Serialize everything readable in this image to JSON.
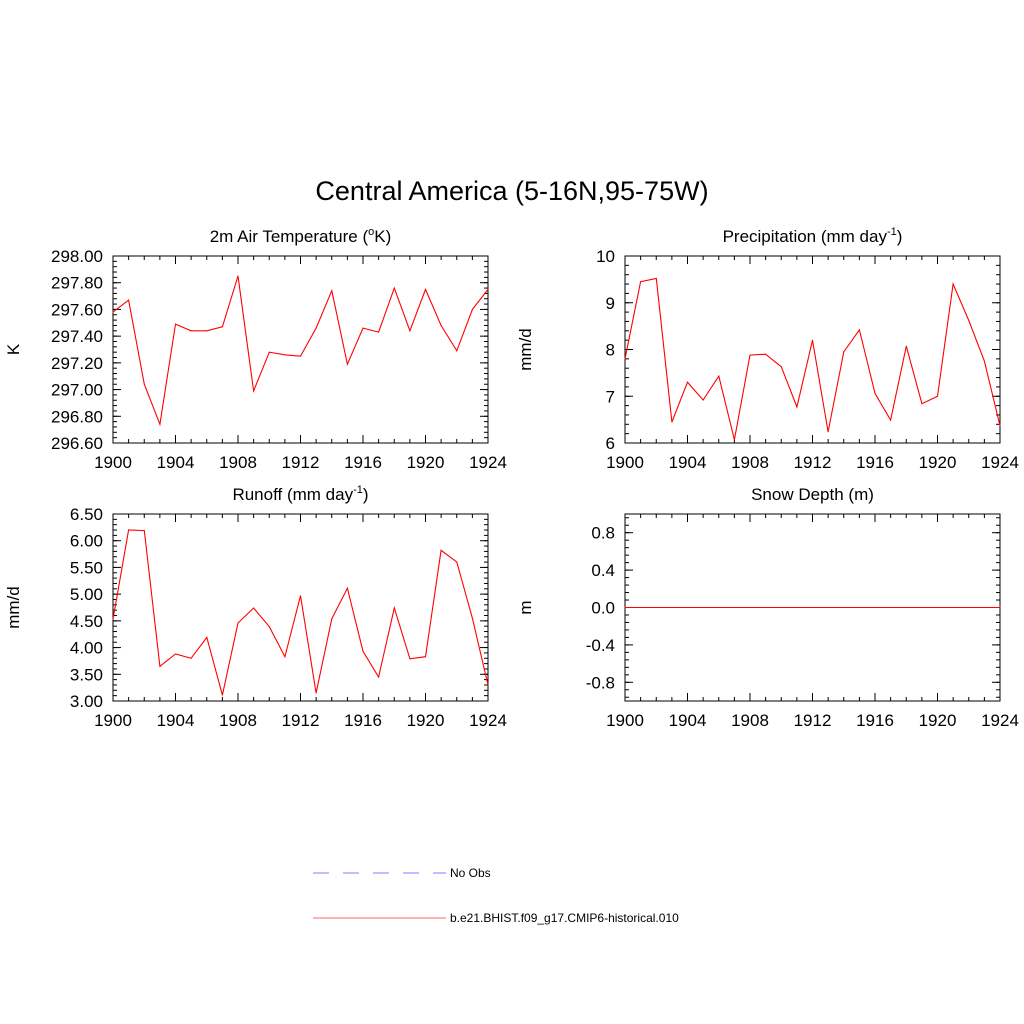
{
  "main_title": "Central America (5-16N,95-75W)",
  "colors": {
    "model_line": "#ff0000",
    "obs_line": "#9999ff",
    "axis": "#000000"
  },
  "legend": {
    "items": [
      {
        "label": "No Obs",
        "style": "dashed",
        "color": "#9999ff"
      },
      {
        "label": "b.e21.BHIST.f09_g17.CMIP6-historical.010",
        "style": "solid",
        "color": "#ff8080"
      }
    ]
  },
  "chart_data": [
    {
      "type": "line",
      "title": "2m Air Temperature (",
      "title_sup": "o",
      "title_after": "K)",
      "ylabel": "K",
      "xlim": [
        1900,
        1924
      ],
      "ylim": [
        296.6,
        298.0
      ],
      "xticks": [
        "1900",
        "1904",
        "1908",
        "1912",
        "1916",
        "1920",
        "1924"
      ],
      "yticks": [
        "296.60",
        "296.80",
        "297.00",
        "297.20",
        "297.40",
        "297.60",
        "297.80",
        "298.00"
      ],
      "x": [
        1900,
        1901,
        1902,
        1903,
        1904,
        1905,
        1906,
        1907,
        1908,
        1909,
        1910,
        1911,
        1912,
        1913,
        1914,
        1915,
        1916,
        1917,
        1918,
        1919,
        1920,
        1921,
        1922,
        1923,
        1924
      ],
      "series": [
        {
          "values": [
            297.58,
            297.67,
            297.04,
            296.74,
            297.49,
            297.44,
            297.44,
            297.47,
            297.85,
            296.99,
            297.28,
            297.26,
            297.25,
            297.46,
            297.74,
            297.19,
            297.46,
            297.43,
            297.76,
            297.44,
            297.75,
            297.48,
            297.29,
            297.6,
            297.75
          ]
        }
      ]
    },
    {
      "type": "line",
      "title": "Precipitation (mm day",
      "title_sup": "-1",
      "title_after": ")",
      "ylabel": "mm/d",
      "xlim": [
        1900,
        1924
      ],
      "ylim": [
        6,
        10
      ],
      "xticks": [
        "1900",
        "1904",
        "1908",
        "1912",
        "1916",
        "1920",
        "1924"
      ],
      "yticks": [
        "6",
        "7",
        "8",
        "9",
        "10"
      ],
      "x": [
        1900,
        1901,
        1902,
        1903,
        1904,
        1905,
        1906,
        1907,
        1908,
        1909,
        1910,
        1911,
        1912,
        1913,
        1914,
        1915,
        1916,
        1917,
        1918,
        1919,
        1920,
        1921,
        1922,
        1923,
        1924
      ],
      "series": [
        {
          "values": [
            7.8,
            9.45,
            9.52,
            6.45,
            7.3,
            6.92,
            7.43,
            6.07,
            7.88,
            7.9,
            7.63,
            6.77,
            8.2,
            6.24,
            7.95,
            8.42,
            7.06,
            6.49,
            8.07,
            6.84,
            7.0,
            9.4,
            8.62,
            7.75,
            6.37
          ]
        }
      ]
    },
    {
      "type": "line",
      "title": "Runoff (mm day",
      "title_sup": "-1",
      "title_after": ")",
      "ylabel": "mm/d",
      "xlim": [
        1900,
        1924
      ],
      "ylim": [
        3.0,
        6.5
      ],
      "xticks": [
        "1900",
        "1904",
        "1908",
        "1912",
        "1916",
        "1920",
        "1924"
      ],
      "yticks": [
        "3.00",
        "3.50",
        "4.00",
        "4.50",
        "5.00",
        "5.50",
        "6.00",
        "6.50"
      ],
      "x": [
        1900,
        1901,
        1902,
        1903,
        1904,
        1905,
        1906,
        1907,
        1908,
        1909,
        1910,
        1911,
        1912,
        1913,
        1914,
        1915,
        1916,
        1917,
        1918,
        1919,
        1920,
        1921,
        1922,
        1923,
        1924
      ],
      "series": [
        {
          "values": [
            4.53,
            6.2,
            6.19,
            3.65,
            3.88,
            3.8,
            4.19,
            3.11,
            4.46,
            4.74,
            4.39,
            3.83,
            4.97,
            3.15,
            4.54,
            5.11,
            3.93,
            3.45,
            4.74,
            3.79,
            3.83,
            5.82,
            5.6,
            4.55,
            3.3
          ]
        }
      ]
    },
    {
      "type": "line",
      "title": "Snow Depth (m)",
      "title_sup": "",
      "title_after": "",
      "ylabel": "m",
      "xlim": [
        1900,
        1924
      ],
      "ylim": [
        -1.0,
        1.0
      ],
      "xticks": [
        "1900",
        "1904",
        "1908",
        "1912",
        "1916",
        "1920",
        "1924"
      ],
      "yticks": [
        "-0.8",
        "-0.4",
        "0.0",
        "0.4",
        "0.8"
      ],
      "x": [
        1900,
        1901,
        1902,
        1903,
        1904,
        1905,
        1906,
        1907,
        1908,
        1909,
        1910,
        1911,
        1912,
        1913,
        1914,
        1915,
        1916,
        1917,
        1918,
        1919,
        1920,
        1921,
        1922,
        1923,
        1924
      ],
      "series": [
        {
          "values": [
            0,
            0,
            0,
            0,
            0,
            0,
            0,
            0,
            0,
            0,
            0,
            0,
            0,
            0,
            0,
            0,
            0,
            0,
            0,
            0,
            0,
            0,
            0,
            0,
            0
          ]
        }
      ]
    }
  ]
}
